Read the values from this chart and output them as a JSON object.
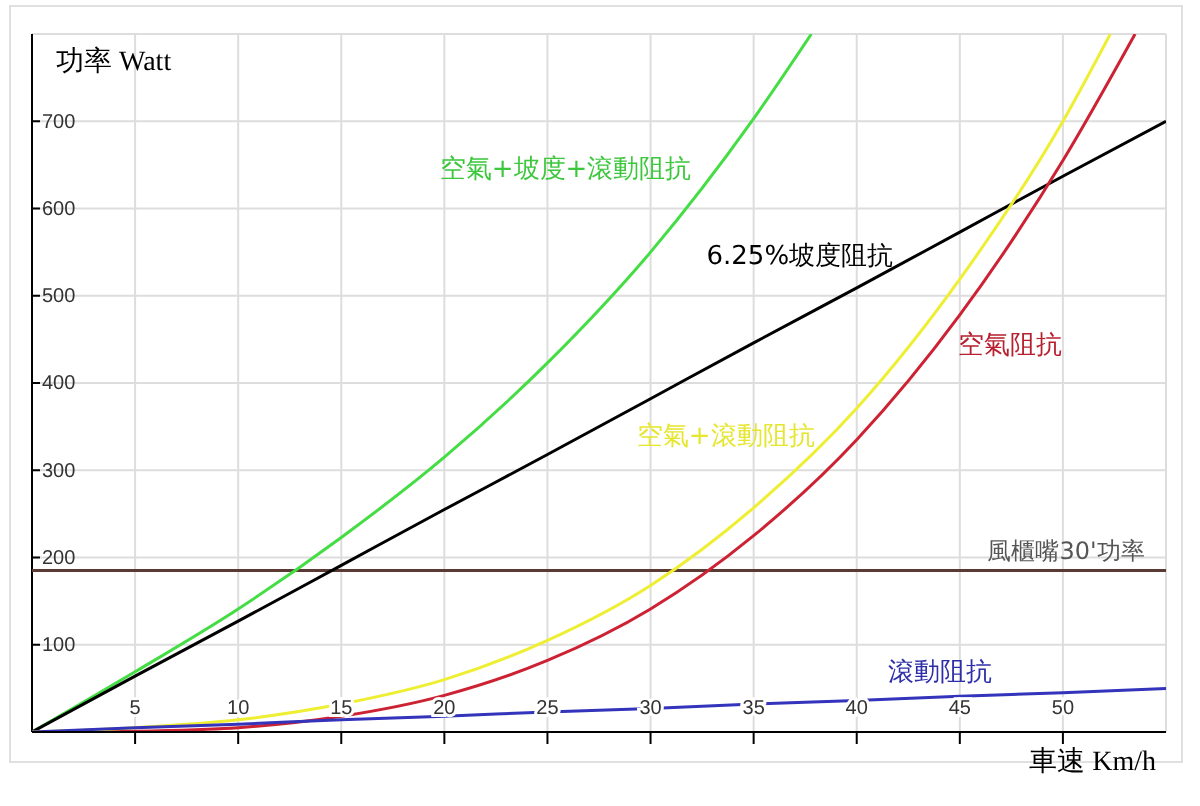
{
  "chart_data": {
    "type": "line",
    "xlabel": "車速 Km/h",
    "ylabel": "功率 Watt",
    "xlim": [
      0,
      55
    ],
    "ylim": [
      0,
      800
    ],
    "xticks": [
      5,
      10,
      15,
      20,
      25,
      30,
      35,
      40,
      45,
      50
    ],
    "yticks": [
      100,
      200,
      300,
      400,
      500,
      600,
      700
    ],
    "grid": true,
    "series": [
      {
        "name": "空氣+坡度+滾動阻抗",
        "color": "#44dd44",
        "x": [
          0,
          5,
          10,
          15,
          20,
          25,
          30,
          35,
          37.8
        ],
        "values": [
          0,
          69,
          141,
          223,
          315,
          423,
          550,
          703,
          800
        ]
      },
      {
        "name": "6.25%坡度阻抗",
        "color": "#000000",
        "x": [
          0,
          5,
          10,
          15,
          20,
          25,
          30,
          35,
          40,
          45,
          50,
          55
        ],
        "values": [
          0,
          64,
          127,
          191,
          255,
          318,
          382,
          446,
          509,
          573,
          637,
          700
        ]
      },
      {
        "name": "空氣阻抗",
        "color": "#cc2233",
        "x": [
          0,
          5,
          10,
          15,
          20,
          25,
          30,
          35,
          40,
          45,
          50,
          53.5
        ],
        "values": [
          0,
          1,
          5,
          18,
          42,
          82,
          141,
          225,
          335,
          478,
          655,
          800
        ]
      },
      {
        "name": "空氣+滾動阻抗",
        "color": "#eeee33",
        "x": [
          0,
          5,
          10,
          15,
          20,
          25,
          30,
          35,
          40,
          45,
          50,
          52.3
        ],
        "values": [
          0,
          5,
          14,
          32,
          60,
          105,
          168,
          257,
          371,
          519,
          700,
          800
        ]
      },
      {
        "name": "滾動阻抗",
        "color": "#3333bb",
        "x": [
          0,
          5,
          10,
          15,
          20,
          25,
          30,
          35,
          40,
          45,
          50,
          55
        ],
        "values": [
          0,
          5,
          9,
          14,
          18,
          23,
          27,
          32,
          36,
          41,
          45,
          50
        ]
      }
    ],
    "ref_lines": [
      {
        "axis": "y",
        "value": 185,
        "label": "風櫃嘴30'功率",
        "color": "#5a3a32"
      }
    ]
  }
}
